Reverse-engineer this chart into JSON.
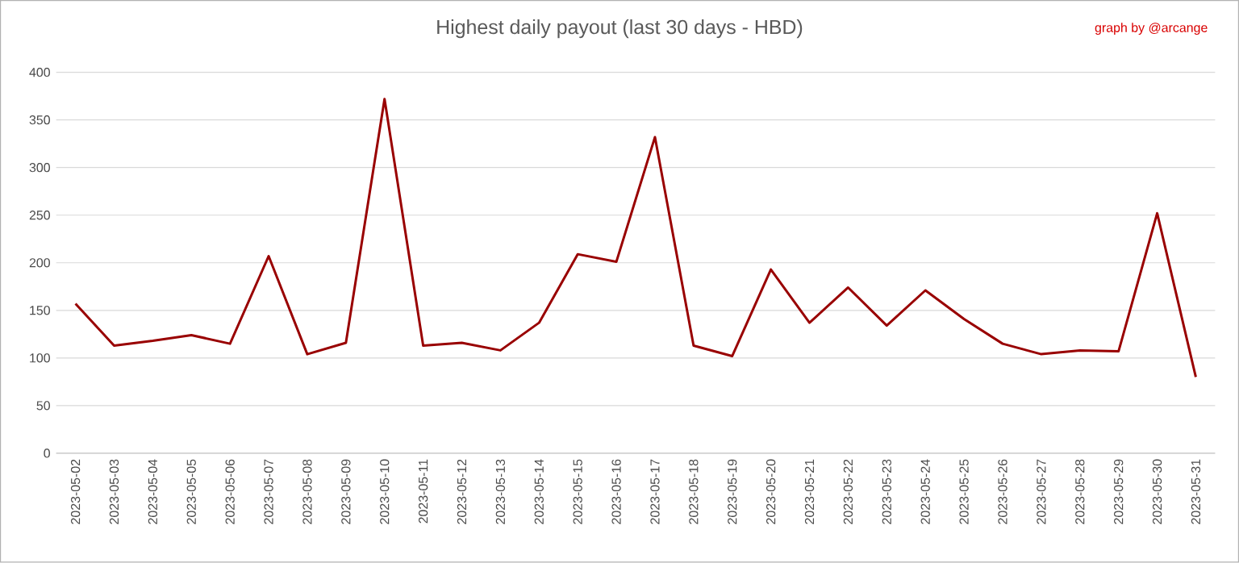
{
  "chart_data": {
    "type": "line",
    "title": "Highest daily payout (last 30 days - HBD)",
    "annotations": [
      "graph by @arcange"
    ],
    "categories": [
      "2023-05-02",
      "2023-05-03",
      "2023-05-04",
      "2023-05-05",
      "2023-05-06",
      "2023-05-07",
      "2023-05-08",
      "2023-05-09",
      "2023-05-10",
      "2023-05-11",
      "2023-05-12",
      "2023-05-13",
      "2023-05-14",
      "2023-05-15",
      "2023-05-16",
      "2023-05-17",
      "2023-05-18",
      "2023-05-19",
      "2023-05-20",
      "2023-05-21",
      "2023-05-22",
      "2023-05-23",
      "2023-05-24",
      "2023-05-25",
      "2023-05-26",
      "2023-05-27",
      "2023-05-28",
      "2023-05-29",
      "2023-05-30",
      "2023-05-31"
    ],
    "series": [
      {
        "color": "#990000",
        "values": [
          157,
          113,
          118,
          124,
          115,
          207,
          104,
          116,
          372,
          113,
          116,
          108,
          137,
          209,
          201,
          332,
          113,
          102,
          193,
          137,
          174,
          134,
          171,
          141,
          115,
          104,
          108,
          107,
          252,
          80
        ]
      }
    ],
    "ylim": [
      0,
      400
    ],
    "yticks": [
      0,
      50,
      100,
      150,
      200,
      250,
      300,
      350,
      400
    ],
    "grid": "y"
  }
}
